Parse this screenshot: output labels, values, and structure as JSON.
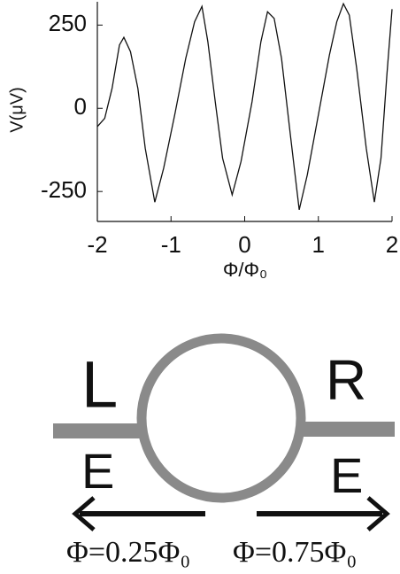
{
  "chart_data": {
    "type": "line",
    "xlabel": "Φ/Φ₀",
    "ylabel": "V(μV)",
    "x": [
      -2,
      -1.9,
      -1.8,
      -1.7,
      -1.64,
      -1.55,
      -1.45,
      -1.35,
      -1.22,
      -1.1,
      -0.95,
      -0.8,
      -0.68,
      -0.58,
      -0.5,
      -0.4,
      -0.3,
      -0.17,
      -0.05,
      0.1,
      0.22,
      0.31,
      0.4,
      0.5,
      0.62,
      0.74,
      0.85,
      1.0,
      1.15,
      1.25,
      1.34,
      1.42,
      1.52,
      1.65,
      1.76,
      1.85,
      1.93,
      2.0
    ],
    "values": [
      -55,
      -30,
      60,
      190,
      213,
      170,
      60,
      -120,
      -282,
      -180,
      -20,
      150,
      260,
      306,
      200,
      20,
      -150,
      -260,
      -160,
      20,
      200,
      290,
      270,
      150,
      -80,
      -305,
      -200,
      -20,
      160,
      260,
      314,
      280,
      120,
      -120,
      -282,
      -150,
      100,
      298
    ],
    "color": "#111111",
    "xlim": [
      -2,
      2
    ],
    "xticks": [
      -2,
      -1,
      0,
      1,
      2
    ],
    "ylim": [
      -340,
      320
    ],
    "yticks": [
      -250,
      0,
      250
    ],
    "grid": false
  },
  "diagram": {
    "labels": [
      "L",
      "R",
      "E",
      "E",
      "Φ=0.25Φ₀",
      "Φ=0.75Φ₀"
    ]
  }
}
